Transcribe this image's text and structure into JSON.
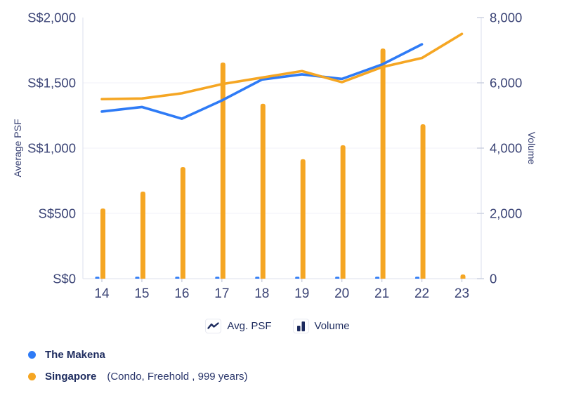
{
  "colors": {
    "makena_blue": "#2E7BF6",
    "singapore_orange": "#F5A623",
    "tick_text": "#3A4375",
    "legend_text": "#1D2B5E",
    "axis_line": "#E3E6F0",
    "gridline": "#F3F4F9",
    "tick_mark": "#C7CCDD"
  },
  "legend": {
    "avg_psf_label": "Avg. PSF",
    "volume_label": "Volume"
  },
  "series_legend": [
    {
      "name": "The Makena",
      "detail": "",
      "dot_color": "#2E7BF6"
    },
    {
      "name": "Singapore",
      "detail": "(Condo, Freehold , 999 years)",
      "dot_color": "#F5A623"
    }
  ],
  "chart_data": {
    "type": "combo-line-bar",
    "categories": [
      "14",
      "15",
      "16",
      "17",
      "18",
      "19",
      "20",
      "21",
      "22",
      "23"
    ],
    "left_axis": {
      "label": "Average PSF",
      "min": 0,
      "max": 2000,
      "ticks": [
        {
          "label": "S$2,000",
          "value": 2000
        },
        {
          "label": "S$1,500",
          "value": 1500
        },
        {
          "label": "S$1,000",
          "value": 1000
        },
        {
          "label": "S$500",
          "value": 500
        },
        {
          "label": "S$0",
          "value": 0
        }
      ]
    },
    "right_axis": {
      "label": "Volume",
      "min": 0,
      "max": 8000,
      "ticks": [
        {
          "label": "8,000",
          "value": 8000
        },
        {
          "label": "6,000",
          "value": 6000
        },
        {
          "label": "4,000",
          "value": 4000
        },
        {
          "label": "2,000",
          "value": 2000
        },
        {
          "label": "0",
          "value": 0
        }
      ]
    },
    "series": [
      {
        "name": "The Makena",
        "metric": "Avg. PSF",
        "type": "line",
        "axis": "left",
        "color": "#2E7BF6",
        "values": [
          1280,
          1315,
          1225,
          1365,
          1525,
          1565,
          1530,
          1640,
          1795,
          null
        ]
      },
      {
        "name": "Singapore (Condo, Freehold, 999 years)",
        "metric": "Avg. PSF",
        "type": "line",
        "axis": "left",
        "color": "#F5A623",
        "values": [
          1375,
          1380,
          1420,
          1490,
          1540,
          1590,
          1505,
          1620,
          1690,
          1875
        ]
      },
      {
        "name": "The Makena",
        "metric": "Volume",
        "type": "bar",
        "axis": "right",
        "color": "#2E7BF6",
        "values": [
          60,
          60,
          60,
          60,
          60,
          60,
          60,
          60,
          60,
          null
        ]
      },
      {
        "name": "Singapore (Condo, Freehold, 999 years)",
        "metric": "Volume",
        "type": "bar",
        "axis": "right",
        "color": "#F5A623",
        "values": [
          2150,
          2670,
          3420,
          6620,
          5360,
          3660,
          4090,
          7050,
          4730,
          130
        ]
      }
    ],
    "grid": "faint horizontal gridlines at left-axis ticks",
    "legend_position": "bottom-center"
  }
}
